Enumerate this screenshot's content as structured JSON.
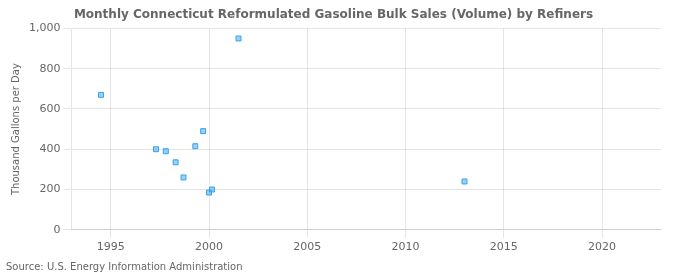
{
  "chart_data": {
    "type": "scatter",
    "title": "Monthly Connecticut Reformulated Gasoline Bulk Sales (Volume) by Refiners",
    "ylabel": "Thousand Gallons per Day",
    "annotations": [
      "Source: U.S. Energy Information Administration"
    ],
    "x": [
      1994.5,
      1997.3,
      1997.8,
      1998.3,
      1998.7,
      1999.3,
      1999.7,
      2000.0,
      2000.15,
      2001.5,
      2013.0
    ],
    "values": [
      670,
      400,
      390,
      335,
      260,
      415,
      490,
      185,
      200,
      950,
      240
    ],
    "marker": "square",
    "xlim": [
      1993,
      2023
    ],
    "xticks": [
      1995,
      2000,
      2005,
      2010,
      2015,
      2020
    ],
    "ylim": [
      0,
      1000
    ],
    "yticks": [
      0,
      200,
      400,
      600,
      800,
      {
        "value": 1000,
        "label": "1,000"
      }
    ],
    "grid": true
  }
}
